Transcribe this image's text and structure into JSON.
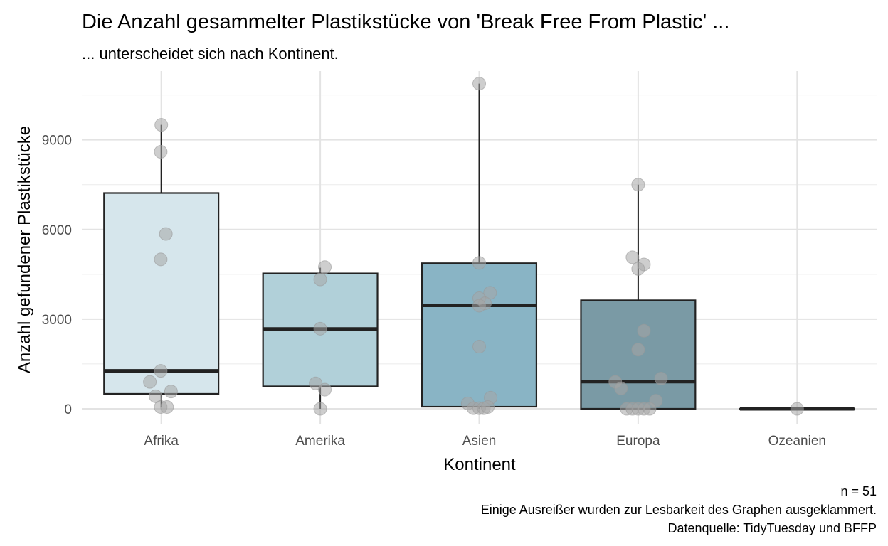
{
  "chart_data": {
    "type": "boxplot",
    "title": "Die Anzahl gesammelter Plastikstücke von 'Break Free From Plastic' ...",
    "subtitle": "... unterscheidet sich nach Kontinent.",
    "xlabel": "Kontinent",
    "ylabel": "Anzahl gefundener Plastikstücke",
    "ylim": [
      -500,
      11300
    ],
    "yticks": [
      0,
      3000,
      6000,
      9000
    ],
    "grid": true,
    "legend": "none",
    "categories": [
      "Afrika",
      "Amerika",
      "Asien",
      "Europa",
      "Ozeanien"
    ],
    "boxes": [
      {
        "category": "Afrika",
        "lower_whisker": 50,
        "q1": 500,
        "median": 1270,
        "q3": 7220,
        "upper_whisker": 9500,
        "color": "#d6e6ec"
      },
      {
        "category": "Amerika",
        "lower_whisker": 0,
        "q1": 750,
        "median": 2670,
        "q3": 4530,
        "upper_whisker": 4720,
        "color": "#b1d0d9"
      },
      {
        "category": "Asien",
        "lower_whisker": 0,
        "q1": 70,
        "median": 3460,
        "q3": 4870,
        "upper_whisker": 10880,
        "color": "#89b4c5"
      },
      {
        "category": "Europa",
        "lower_whisker": 0,
        "q1": 0,
        "median": 910,
        "q3": 3630,
        "upper_whisker": 7500,
        "color": "#7a9aa5"
      },
      {
        "category": "Ozeanien",
        "lower_whisker": 0,
        "q1": 0,
        "median": 0,
        "q3": 0,
        "upper_whisker": 0,
        "color": "#7a9aa5"
      }
    ],
    "points": [
      {
        "category": "Afrika",
        "jitter": 0.0,
        "y": 9500
      },
      {
        "category": "Afrika",
        "jitter": -0.01,
        "y": 8600
      },
      {
        "category": "Afrika",
        "jitter": 0.08,
        "y": 5850
      },
      {
        "category": "Afrika",
        "jitter": -0.01,
        "y": 5000
      },
      {
        "category": "Afrika",
        "jitter": -0.01,
        "y": 1270
      },
      {
        "category": "Afrika",
        "jitter": -0.2,
        "y": 900
      },
      {
        "category": "Afrika",
        "jitter": 0.17,
        "y": 580
      },
      {
        "category": "Afrika",
        "jitter": -0.1,
        "y": 420
      },
      {
        "category": "Afrika",
        "jitter": -0.01,
        "y": 60
      },
      {
        "category": "Afrika",
        "jitter": 0.1,
        "y": 60
      },
      {
        "category": "Amerika",
        "jitter": 0.08,
        "y": 4740
      },
      {
        "category": "Amerika",
        "jitter": 0.0,
        "y": 4330
      },
      {
        "category": "Amerika",
        "jitter": 0.0,
        "y": 2680
      },
      {
        "category": "Amerika",
        "jitter": -0.08,
        "y": 850
      },
      {
        "category": "Amerika",
        "jitter": 0.08,
        "y": 640
      },
      {
        "category": "Amerika",
        "jitter": 0.0,
        "y": 0
      },
      {
        "category": "Asien",
        "jitter": 0.0,
        "y": 10880
      },
      {
        "category": "Asien",
        "jitter": 0.0,
        "y": 4880
      },
      {
        "category": "Asien",
        "jitter": 0.19,
        "y": 3880
      },
      {
        "category": "Asien",
        "jitter": 0.0,
        "y": 3700
      },
      {
        "category": "Asien",
        "jitter": 0.1,
        "y": 3530
      },
      {
        "category": "Asien",
        "jitter": 0.0,
        "y": 3450
      },
      {
        "category": "Asien",
        "jitter": 0.0,
        "y": 2080
      },
      {
        "category": "Asien",
        "jitter": 0.2,
        "y": 370
      },
      {
        "category": "Asien",
        "jitter": -0.2,
        "y": 180
      },
      {
        "category": "Asien",
        "jitter": -0.1,
        "y": 20
      },
      {
        "category": "Asien",
        "jitter": 0.0,
        "y": 20
      },
      {
        "category": "Asien",
        "jitter": 0.08,
        "y": 20
      },
      {
        "category": "Asien",
        "jitter": 0.15,
        "y": 60
      },
      {
        "category": "Europa",
        "jitter": 0.0,
        "y": 7500
      },
      {
        "category": "Europa",
        "jitter": -0.1,
        "y": 5070
      },
      {
        "category": "Europa",
        "jitter": 0.1,
        "y": 4830
      },
      {
        "category": "Europa",
        "jitter": 0.0,
        "y": 4680
      },
      {
        "category": "Europa",
        "jitter": 0.1,
        "y": 2610
      },
      {
        "category": "Europa",
        "jitter": 0.0,
        "y": 1980
      },
      {
        "category": "Europa",
        "jitter": 0.4,
        "y": 1010
      },
      {
        "category": "Europa",
        "jitter": -0.4,
        "y": 900
      },
      {
        "category": "Europa",
        "jitter": -0.3,
        "y": 680
      },
      {
        "category": "Europa",
        "jitter": 0.31,
        "y": 270
      },
      {
        "category": "Europa",
        "jitter": -0.2,
        "y": 0
      },
      {
        "category": "Europa",
        "jitter": -0.1,
        "y": 0
      },
      {
        "category": "Europa",
        "jitter": 0.0,
        "y": 0
      },
      {
        "category": "Europa",
        "jitter": 0.1,
        "y": 0
      },
      {
        "category": "Europa",
        "jitter": 0.2,
        "y": 0
      },
      {
        "category": "Ozeanien",
        "jitter": 0.0,
        "y": 0
      }
    ],
    "point_color": "#a6a6a6",
    "caption": [
      "n = 51",
      "Einige Ausreißer wurden zur Lesbarkeit des Graphen ausgeklammert.",
      "Datenquelle: TidyTuesday und BFFP"
    ]
  }
}
